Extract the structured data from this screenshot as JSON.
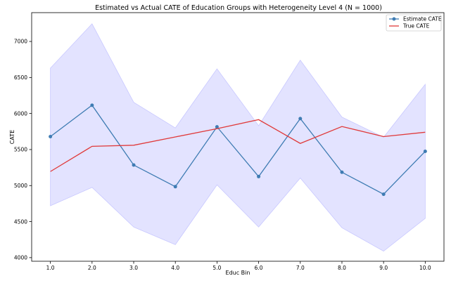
{
  "chart_data": {
    "type": "line",
    "title": "Estimated vs Actual CATE of Education Groups with Heterogeneity Level 4 (N = 1000)",
    "xlabel": "Educ Bin",
    "ylabel": "CATE",
    "x": [
      1.0,
      2.0,
      3.0,
      4.0,
      5.0,
      6.0,
      7.0,
      8.0,
      9.0,
      10.0
    ],
    "x_tick_labels": [
      "1.0",
      "2.0",
      "3.0",
      "4.0",
      "5.0",
      "6.0",
      "7.0",
      "8.0",
      "9.0",
      "10.0"
    ],
    "xlim": [
      0.55,
      10.45
    ],
    "ylim": [
      3950,
      7400
    ],
    "y_ticks": [
      4000,
      4500,
      5000,
      5500,
      6000,
      6500,
      7000
    ],
    "y_tick_labels": [
      "4000",
      "4500",
      "5000",
      "5500",
      "6000",
      "6500",
      "7000"
    ],
    "series": [
      {
        "name": "Estimate CATE",
        "color": "#3f7cb3",
        "marker": "circle",
        "values": [
          5680,
          6115,
          5285,
          4985,
          5815,
          5125,
          5930,
          5185,
          4880,
          5475
        ]
      },
      {
        "name": "True CATE",
        "color": "#e03a3a",
        "marker": "none",
        "values": [
          5195,
          5545,
          5560,
          5675,
          5790,
          5915,
          5585,
          5820,
          5680,
          5740
        ]
      }
    ],
    "confidence_band": {
      "color": "#c8c8ff",
      "lower": [
        4720,
        4975,
        4425,
        4180,
        5010,
        4425,
        5105,
        4415,
        4090,
        4545
      ],
      "upper": [
        6630,
        7245,
        6155,
        5800,
        6620,
        5830,
        6740,
        5950,
        5670,
        6405
      ]
    },
    "legend_position": "top-right",
    "grid": false
  }
}
